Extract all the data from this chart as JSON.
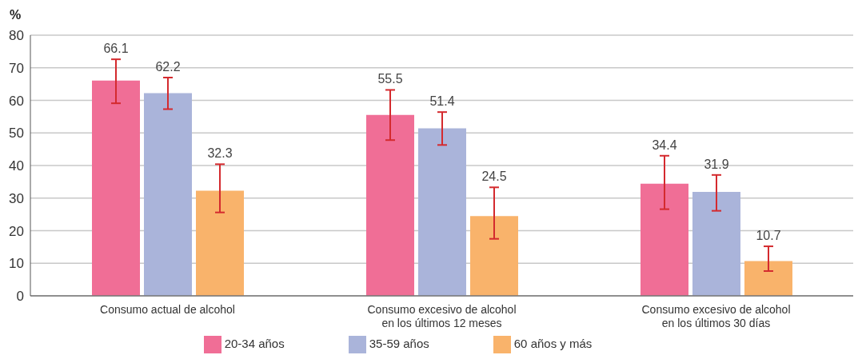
{
  "chart_data": {
    "type": "bar",
    "ylabel": "%",
    "categories": [
      "Consumo actual de alcohol",
      "Consumo excesivo de alcohol en los últimos 12 meses",
      "Consumo excesivo de alcohol en los últimos 30 días"
    ],
    "series": [
      {
        "name": "20-34 años",
        "color": "#f06e96",
        "values": [
          66.1,
          55.5,
          34.4
        ],
        "errors": [
          [
            59.1,
            72.6
          ],
          [
            47.8,
            63.2
          ],
          [
            26.6,
            43.0
          ]
        ]
      },
      {
        "name": "35-59 años",
        "color": "#aab4da",
        "values": [
          62.2,
          51.4,
          31.9
        ],
        "errors": [
          [
            57.3,
            67.0
          ],
          [
            46.3,
            56.4
          ],
          [
            26.1,
            37.1
          ]
        ]
      },
      {
        "name": "60 años y más",
        "color": "#f9b36b",
        "values": [
          32.3,
          24.5,
          10.7
        ],
        "errors": [
          [
            25.6,
            40.4
          ],
          [
            17.5,
            33.3
          ],
          [
            7.6,
            15.2
          ]
        ]
      }
    ],
    "ylim": [
      0,
      80
    ],
    "yticks": [
      0,
      10,
      20,
      30,
      40,
      50,
      60,
      70,
      80
    ],
    "grid": "y",
    "legend": "bottom",
    "data_labels": true
  }
}
